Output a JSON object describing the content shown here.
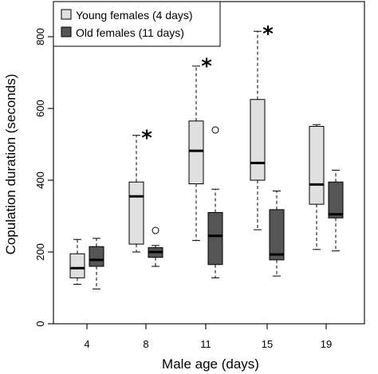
{
  "chart_data": {
    "type": "boxplot",
    "xlabel": "Male age (days)",
    "ylabel": "Copulation duration (seconds)",
    "ylim": [
      0,
      850
    ],
    "yticks": [
      0,
      200,
      400,
      600,
      800
    ],
    "categories": [
      "4",
      "8",
      "11",
      "15",
      "19"
    ],
    "legend": {
      "placement": "top-left"
    },
    "series": [
      {
        "name": "Young females (4 days)",
        "color": "#e0e0e0",
        "boxes": [
          {
            "whisker_low": 110,
            "q1": 128,
            "median": 155,
            "q3": 195,
            "whisker_high": 235,
            "outliers": []
          },
          {
            "whisker_low": 200,
            "q1": 222,
            "median": 355,
            "q3": 395,
            "whisker_high": 525,
            "outliers": []
          },
          {
            "whisker_low": 232,
            "q1": 390,
            "median": 482,
            "q3": 565,
            "whisker_high": 718,
            "outliers": []
          },
          {
            "whisker_low": 262,
            "q1": 400,
            "median": 448,
            "q3": 625,
            "whisker_high": 815,
            "outliers": []
          },
          {
            "whisker_low": 207,
            "q1": 333,
            "median": 388,
            "q3": 550,
            "whisker_high": 555,
            "outliers": []
          }
        ]
      },
      {
        "name": "Old females (11 days)",
        "color": "#555555",
        "boxes": [
          {
            "whisker_low": 97,
            "q1": 160,
            "median": 178,
            "q3": 215,
            "whisker_high": 238,
            "outliers": []
          },
          {
            "whisker_low": 160,
            "q1": 185,
            "median": 200,
            "q3": 212,
            "whisker_high": 218,
            "outliers": [
              260
            ]
          },
          {
            "whisker_low": 128,
            "q1": 165,
            "median": 245,
            "q3": 310,
            "whisker_high": 375,
            "outliers": [
              540
            ]
          },
          {
            "whisker_low": 133,
            "q1": 178,
            "median": 193,
            "q3": 318,
            "whisker_high": 370,
            "outliers": []
          },
          {
            "whisker_low": 203,
            "q1": 295,
            "median": 305,
            "q3": 395,
            "whisker_high": 428,
            "outliers": []
          }
        ]
      }
    ],
    "annotations": [
      {
        "category": "8",
        "y": 535,
        "text": "*"
      },
      {
        "category": "11",
        "y": 735,
        "text": "*"
      },
      {
        "category": "15",
        "y": 825,
        "text": "*"
      }
    ]
  }
}
